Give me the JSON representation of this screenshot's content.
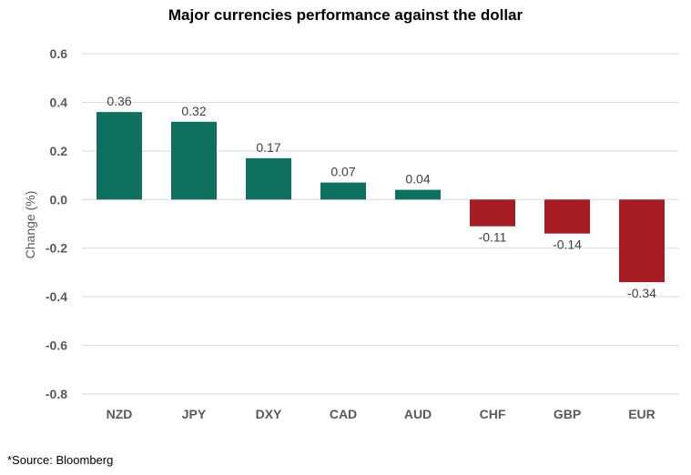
{
  "chart_data": {
    "type": "bar",
    "title": "Major currencies performance against the dollar",
    "xlabel": "",
    "ylabel": "Change (%)",
    "categories": [
      "NZD",
      "JPY",
      "DXY",
      "CAD",
      "AUD",
      "CHF",
      "GBP",
      "EUR"
    ],
    "values": [
      0.36,
      0.32,
      0.17,
      0.07,
      0.04,
      -0.11,
      -0.14,
      -0.34
    ],
    "data_labels": [
      "0.36",
      "0.32",
      "0.17",
      "0.07",
      "0.04",
      "-0.11",
      "-0.14",
      "-0.34"
    ],
    "ylim": [
      -0.8,
      0.6
    ],
    "yticks": [
      0.6,
      0.4,
      0.2,
      0.0,
      -0.2,
      -0.4,
      -0.6,
      -0.8
    ],
    "ytick_labels": [
      "0.6",
      "0.4",
      "0.2",
      "0.0",
      "-0.2",
      "-0.4",
      "-0.6",
      "-0.8"
    ],
    "grid": true,
    "legend": "none",
    "colors": {
      "positive": "#10705f",
      "negative": "#a51c24",
      "grid": "#d9d9d9",
      "axis_text": "#595959"
    }
  },
  "footnote": "*Source: Bloomberg"
}
